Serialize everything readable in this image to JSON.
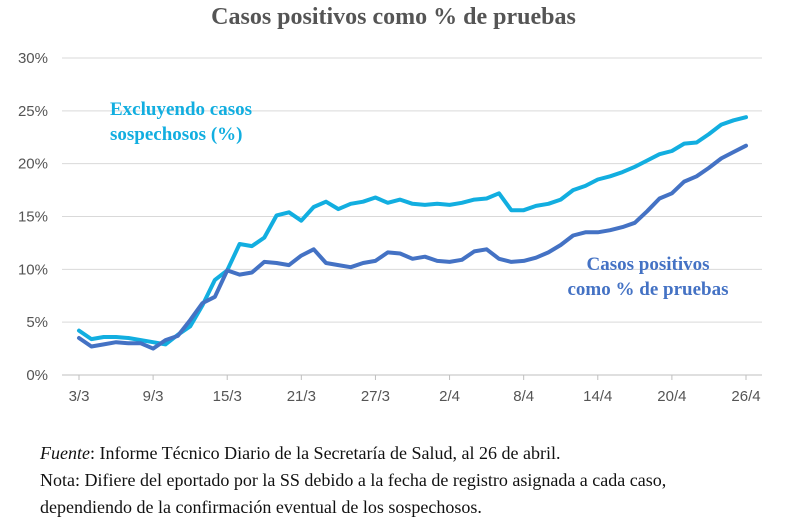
{
  "title": "Casos positivos como % de pruebas",
  "footnotes": {
    "source_label": "Fuente",
    "source_text": ": Informe Técnico Diario de la Secretaría de Salud, al 26 de abril.",
    "note_line1": "Nota: Difiere del eportado por la SS debido a la fecha de registro asignada a cada caso,",
    "note_line2": "dependiendo de la confirmación eventual de los sospechosos."
  },
  "chart_data": {
    "type": "line",
    "title": "Casos positivos como % de pruebas",
    "x": [
      "3/3",
      "4/3",
      "5/3",
      "6/3",
      "7/3",
      "8/3",
      "9/3",
      "10/3",
      "11/3",
      "12/3",
      "13/3",
      "14/3",
      "15/3",
      "16/3",
      "17/3",
      "18/3",
      "19/3",
      "20/3",
      "21/3",
      "22/3",
      "23/3",
      "24/3",
      "25/3",
      "26/3",
      "27/3",
      "28/3",
      "29/3",
      "30/3",
      "31/3",
      "1/4",
      "2/4",
      "3/4",
      "4/4",
      "5/4",
      "6/4",
      "7/4",
      "8/4",
      "9/4",
      "10/4",
      "11/4",
      "12/4",
      "13/4",
      "14/4",
      "15/4",
      "16/4",
      "17/4",
      "18/4",
      "19/4",
      "20/4",
      "21/4",
      "22/4",
      "23/4",
      "24/4",
      "25/4",
      "26/4"
    ],
    "x_tick_labels": [
      "3/3",
      "9/3",
      "15/3",
      "21/3",
      "27/3",
      "2/4",
      "8/4",
      "14/4",
      "20/4",
      "26/4"
    ],
    "y_tick_labels": [
      "0%",
      "5%",
      "10%",
      "15%",
      "20%",
      "25%",
      "30%"
    ],
    "ylim": [
      0,
      30
    ],
    "y_unit": "%",
    "grid": "horizontal",
    "series": [
      {
        "name": "Excluyendo casos sospechosos (%)",
        "label_lines": [
          "Excluyendo casos",
          "sospechosos  (%)"
        ],
        "color": "#12aee0",
        "values": [
          4.2,
          3.4,
          3.6,
          3.6,
          3.5,
          3.3,
          3.1,
          2.9,
          3.8,
          4.6,
          6.6,
          9.0,
          9.9,
          12.4,
          12.2,
          13.0,
          15.1,
          15.4,
          14.6,
          15.9,
          16.4,
          15.7,
          16.2,
          16.4,
          16.8,
          16.3,
          16.6,
          16.2,
          16.1,
          16.2,
          16.1,
          16.3,
          16.6,
          16.7,
          17.2,
          15.6,
          15.6,
          16.0,
          16.2,
          16.6,
          17.5,
          17.9,
          18.5,
          18.8,
          19.2,
          19.7,
          20.3,
          20.9,
          21.2,
          21.9,
          22.0,
          22.8,
          23.7,
          24.1,
          24.4
        ]
      },
      {
        "name": "Casos positivos como % de pruebas",
        "label_lines": [
          "Casos positivos",
          "como % de pruebas"
        ],
        "color": "#4472c4",
        "values": [
          3.5,
          2.7,
          2.9,
          3.1,
          3.0,
          3.0,
          2.5,
          3.3,
          3.7,
          5.2,
          6.8,
          7.4,
          9.9,
          9.5,
          9.7,
          10.7,
          10.6,
          10.4,
          11.3,
          11.9,
          10.6,
          10.4,
          10.2,
          10.6,
          10.8,
          11.6,
          11.5,
          11.0,
          11.2,
          10.8,
          10.7,
          10.9,
          11.7,
          11.9,
          11.0,
          10.7,
          10.8,
          11.1,
          11.6,
          12.3,
          13.2,
          13.5,
          13.5,
          13.7,
          14.0,
          14.4,
          15.5,
          16.7,
          17.2,
          18.3,
          18.8,
          19.6,
          20.5,
          21.1,
          21.7
        ]
      }
    ]
  }
}
